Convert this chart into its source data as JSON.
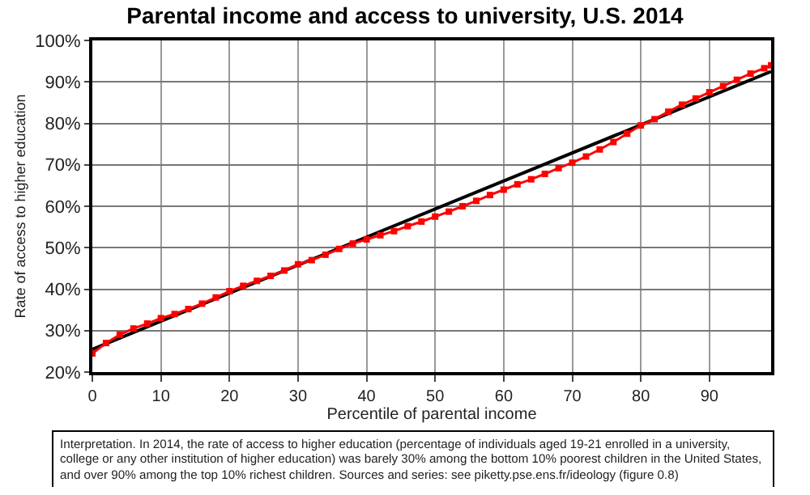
{
  "chart_data": {
    "type": "line",
    "title": "Parental income and access to university, U.S. 2014",
    "xlabel": "Percentile of parental income",
    "ylabel": "Rate of access to higher education",
    "x": [
      0,
      2,
      4,
      6,
      8,
      10,
      12,
      14,
      16,
      18,
      20,
      22,
      24,
      26,
      28,
      30,
      32,
      34,
      36,
      38,
      40,
      42,
      44,
      46,
      48,
      50,
      52,
      54,
      56,
      58,
      60,
      62,
      64,
      66,
      68,
      70,
      72,
      74,
      76,
      78,
      80,
      82,
      84,
      86,
      88,
      90,
      92,
      94,
      96,
      98,
      99
    ],
    "series": [
      {
        "color": "#ff0000",
        "marker": "square",
        "values": [
          24.5,
          27,
          29,
          30.5,
          31.7,
          33,
          34,
          35.2,
          36.5,
          38,
          39.5,
          40.8,
          42,
          43.2,
          44.5,
          46,
          47,
          48.3,
          49.7,
          51,
          52,
          53,
          54,
          55.2,
          56.3,
          57.5,
          58.7,
          60,
          61.3,
          62.7,
          64,
          65.3,
          66.5,
          67.8,
          69.2,
          70.5,
          72,
          73.7,
          75.5,
          77.5,
          79.5,
          81,
          82.8,
          84.5,
          86,
          87.5,
          89,
          90.5,
          92,
          93.3,
          94
        ]
      },
      {
        "type": "line",
        "color": "#000000",
        "marker": "none",
        "x": [
          0,
          99
        ],
        "values": [
          25.5,
          92.5
        ]
      }
    ],
    "xlim": [
      0,
      99
    ],
    "xticks": [
      0,
      10,
      20,
      30,
      40,
      50,
      60,
      70,
      80,
      90
    ],
    "ylim": [
      20,
      100
    ],
    "yticks": [
      {
        "value": 20,
        "label": "20%"
      },
      {
        "value": 30,
        "label": "30%"
      },
      {
        "value": 40,
        "label": "40%"
      },
      {
        "value": 50,
        "label": "50%"
      },
      {
        "value": 60,
        "label": "60%"
      },
      {
        "value": 70,
        "label": "70%"
      },
      {
        "value": 80,
        "label": "80%"
      },
      {
        "value": 90,
        "label": "90%"
      },
      {
        "value": 100,
        "label": "100%"
      }
    ],
    "grid": true,
    "annotations": [
      "Interpretation. In 2014, the rate of access to higher education (percentage of individuals aged 19-21 enrolled in a university, college or any other institution of higher education) was barely 30% among the bottom 10% poorest children in the United States, and over 90% among the top 10% richest children. Sources and series: see piketty.pse.ens.fr/ideology (figure 0.8)"
    ]
  }
}
